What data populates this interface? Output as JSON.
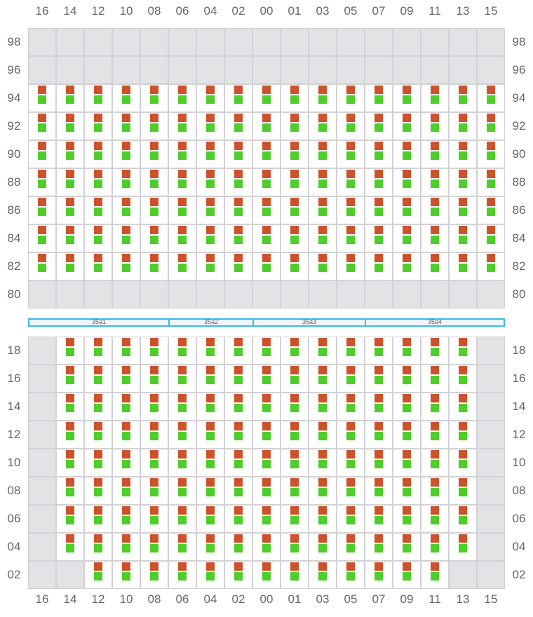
{
  "columns": [
    "16",
    "14",
    "12",
    "10",
    "08",
    "06",
    "04",
    "02",
    "00",
    "01",
    "03",
    "05",
    "07",
    "09",
    "11",
    "13",
    "15"
  ],
  "colors": {
    "slot_top": "#cc522b",
    "slot_bottom": "#4fcd2b",
    "empty": "#e3e3e6",
    "segment_border": "#3bb8ef"
  },
  "top_section": {
    "rows": [
      {
        "label": "98",
        "cells": [
          0,
          0,
          0,
          0,
          0,
          0,
          0,
          0,
          0,
          0,
          0,
          0,
          0,
          0,
          0,
          0,
          0
        ]
      },
      {
        "label": "96",
        "cells": [
          0,
          0,
          0,
          0,
          0,
          0,
          0,
          0,
          0,
          0,
          0,
          0,
          0,
          0,
          0,
          0,
          0
        ]
      },
      {
        "label": "94",
        "cells": [
          1,
          1,
          1,
          1,
          1,
          1,
          1,
          1,
          1,
          1,
          1,
          1,
          1,
          1,
          1,
          1,
          1
        ]
      },
      {
        "label": "92",
        "cells": [
          1,
          1,
          1,
          1,
          1,
          1,
          1,
          1,
          1,
          1,
          1,
          1,
          1,
          1,
          1,
          1,
          1
        ]
      },
      {
        "label": "90",
        "cells": [
          1,
          1,
          1,
          1,
          1,
          1,
          1,
          1,
          1,
          1,
          1,
          1,
          1,
          1,
          1,
          1,
          1
        ]
      },
      {
        "label": "88",
        "cells": [
          1,
          1,
          1,
          1,
          1,
          1,
          1,
          1,
          1,
          1,
          1,
          1,
          1,
          1,
          1,
          1,
          1
        ]
      },
      {
        "label": "86",
        "cells": [
          1,
          1,
          1,
          1,
          1,
          1,
          1,
          1,
          1,
          1,
          1,
          1,
          1,
          1,
          1,
          1,
          1
        ]
      },
      {
        "label": "84",
        "cells": [
          1,
          1,
          1,
          1,
          1,
          1,
          1,
          1,
          1,
          1,
          1,
          1,
          1,
          1,
          1,
          1,
          1
        ]
      },
      {
        "label": "82",
        "cells": [
          1,
          1,
          1,
          1,
          1,
          1,
          1,
          1,
          1,
          1,
          1,
          1,
          1,
          1,
          1,
          1,
          1
        ]
      },
      {
        "label": "80",
        "cells": [
          0,
          0,
          0,
          0,
          0,
          0,
          0,
          0,
          0,
          0,
          0,
          0,
          0,
          0,
          0,
          0,
          0
        ]
      }
    ]
  },
  "segments": [
    {
      "label": "35a1",
      "span": 5
    },
    {
      "label": "35a2",
      "span": 3
    },
    {
      "label": "35a3",
      "span": 4
    },
    {
      "label": "35a4",
      "span": 5
    }
  ],
  "bottom_section": {
    "rows": [
      {
        "label": "18",
        "cells": [
          0,
          1,
          1,
          1,
          1,
          1,
          1,
          1,
          1,
          1,
          1,
          1,
          1,
          1,
          1,
          1,
          0
        ]
      },
      {
        "label": "16",
        "cells": [
          0,
          1,
          1,
          1,
          1,
          1,
          1,
          1,
          1,
          1,
          1,
          1,
          1,
          1,
          1,
          1,
          0
        ]
      },
      {
        "label": "14",
        "cells": [
          0,
          1,
          1,
          1,
          1,
          1,
          1,
          1,
          1,
          1,
          1,
          1,
          1,
          1,
          1,
          1,
          0
        ]
      },
      {
        "label": "12",
        "cells": [
          0,
          1,
          1,
          1,
          1,
          1,
          1,
          1,
          1,
          1,
          1,
          1,
          1,
          1,
          1,
          1,
          0
        ]
      },
      {
        "label": "10",
        "cells": [
          0,
          1,
          1,
          1,
          1,
          1,
          1,
          1,
          1,
          1,
          1,
          1,
          1,
          1,
          1,
          1,
          0
        ]
      },
      {
        "label": "08",
        "cells": [
          0,
          1,
          1,
          1,
          1,
          1,
          1,
          1,
          1,
          1,
          1,
          1,
          1,
          1,
          1,
          1,
          0
        ]
      },
      {
        "label": "06",
        "cells": [
          0,
          1,
          1,
          1,
          1,
          1,
          1,
          1,
          1,
          1,
          1,
          1,
          1,
          1,
          1,
          1,
          0
        ]
      },
      {
        "label": "04",
        "cells": [
          0,
          1,
          1,
          1,
          1,
          1,
          1,
          1,
          1,
          1,
          1,
          1,
          1,
          1,
          1,
          1,
          0
        ]
      },
      {
        "label": "02",
        "cells": [
          0,
          0,
          1,
          1,
          1,
          1,
          1,
          1,
          1,
          1,
          1,
          1,
          1,
          1,
          1,
          0,
          0
        ]
      }
    ]
  }
}
